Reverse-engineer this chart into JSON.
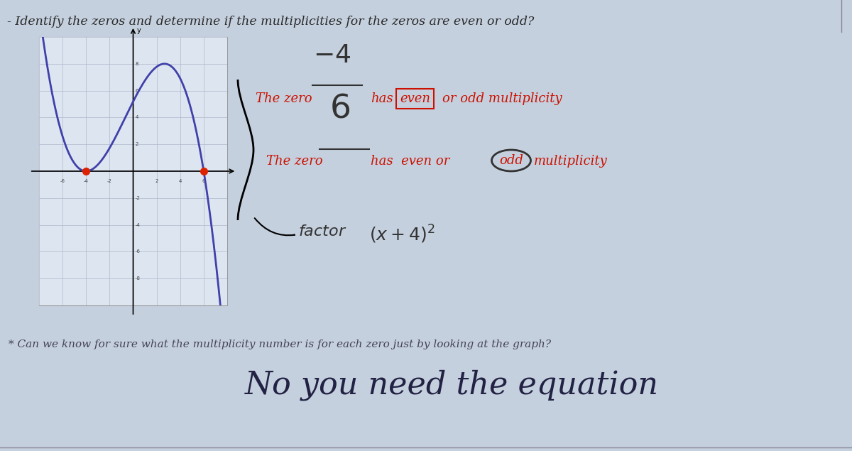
{
  "bg_color": "#c5d0de",
  "graph_bg": "#dde6f0",
  "title_text": "- Identify the zeros and determine if the multiplicities for the zeros are even or odd?",
  "title_fontsize": 12.5,
  "title_color": "#2a2a2a",
  "graph_curve_color": "#4040aa",
  "graph_zero_color": "#dd2200",
  "graph_grid_color": "#b0b8cc",
  "line1_zero": "-4",
  "line1_text": "The zero",
  "line1_has": "has",
  "line1_highlighted": "even",
  "line1_rest": "or odd multiplicity",
  "line2_zero": "6",
  "line2_text": "The zero",
  "line2_has": "has  even or",
  "line2_circled": "odd",
  "line2_rest": "multiplicity",
  "factor_text": "factor (x+4)",
  "question_text": "* Can we know for sure what the multiplicity number is for each zero just by looking at the graph?",
  "answer_text": "No you need the equation",
  "text_color_dark": "#333333",
  "text_color_red": "#cc1100",
  "text_color_handwrite": "#222244",
  "answer_color": "#222244"
}
